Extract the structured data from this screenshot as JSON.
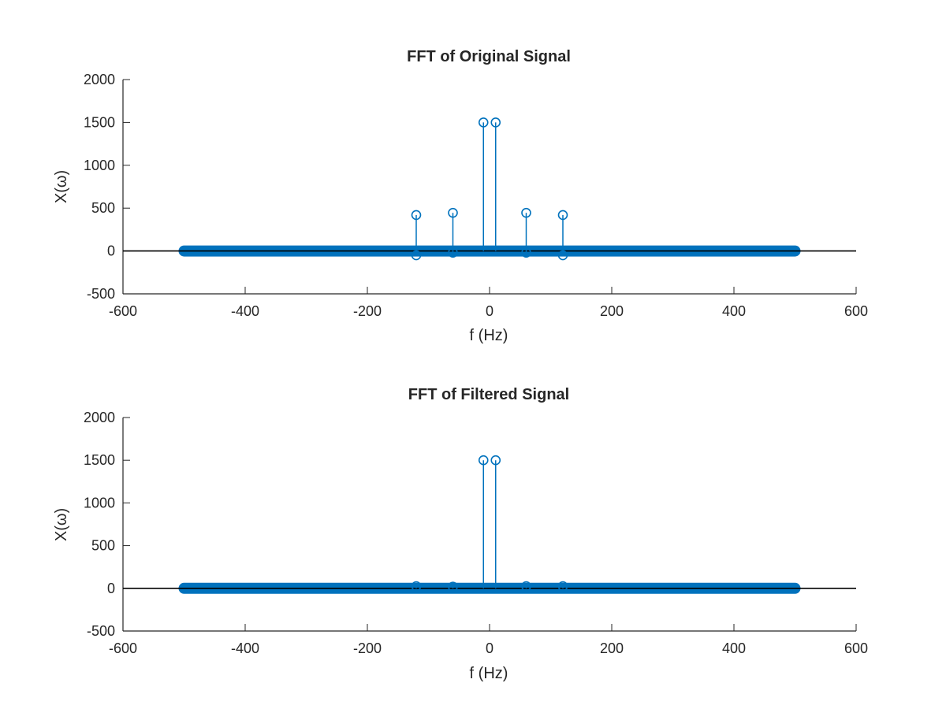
{
  "colors": {
    "stem": "#0072BD",
    "axes": "#262626",
    "baseline": "#000000",
    "background": "#ffffff"
  },
  "chart_data": [
    {
      "type": "stem",
      "title": "FFT of Original Signal",
      "xlabel": "f (Hz)",
      "ylabel": "X(ω)",
      "xlim": [
        -600,
        600
      ],
      "ylim": [
        -500,
        2000
      ],
      "xticks": [
        -600,
        -400,
        -200,
        0,
        200,
        400,
        600
      ],
      "yticks": [
        -500,
        0,
        500,
        1000,
        1500,
        2000
      ],
      "grid": false,
      "baseline": 0,
      "dense_band": {
        "x_range": [
          -500,
          500
        ],
        "y": 0,
        "note": "dense stems with near-zero magnitude across full frequency range"
      },
      "points": [
        {
          "x": -120,
          "y": 420
        },
        {
          "x": -120,
          "y": -50
        },
        {
          "x": -60,
          "y": 445
        },
        {
          "x": -60,
          "y": -20
        },
        {
          "x": -10,
          "y": 1500
        },
        {
          "x": 10,
          "y": 1500
        },
        {
          "x": 60,
          "y": 445
        },
        {
          "x": 60,
          "y": -20
        },
        {
          "x": 120,
          "y": 420
        },
        {
          "x": 120,
          "y": -50
        }
      ]
    },
    {
      "type": "stem",
      "title": "FFT of Filtered Signal",
      "xlabel": "f (Hz)",
      "ylabel": "X(ω)",
      "xlim": [
        -600,
        600
      ],
      "ylim": [
        -500,
        2000
      ],
      "xticks": [
        -600,
        -400,
        -200,
        0,
        200,
        400,
        600
      ],
      "yticks": [
        -500,
        0,
        500,
        1000,
        1500,
        2000
      ],
      "grid": false,
      "baseline": 0,
      "dense_band": {
        "x_range": [
          -500,
          500
        ],
        "y": 0,
        "note": "dense stems with near-zero magnitude across full frequency range"
      },
      "points": [
        {
          "x": -120,
          "y": 25
        },
        {
          "x": -60,
          "y": 20
        },
        {
          "x": -10,
          "y": 1500
        },
        {
          "x": 10,
          "y": 1500
        },
        {
          "x": 60,
          "y": 25
        },
        {
          "x": 120,
          "y": 25
        }
      ]
    }
  ]
}
